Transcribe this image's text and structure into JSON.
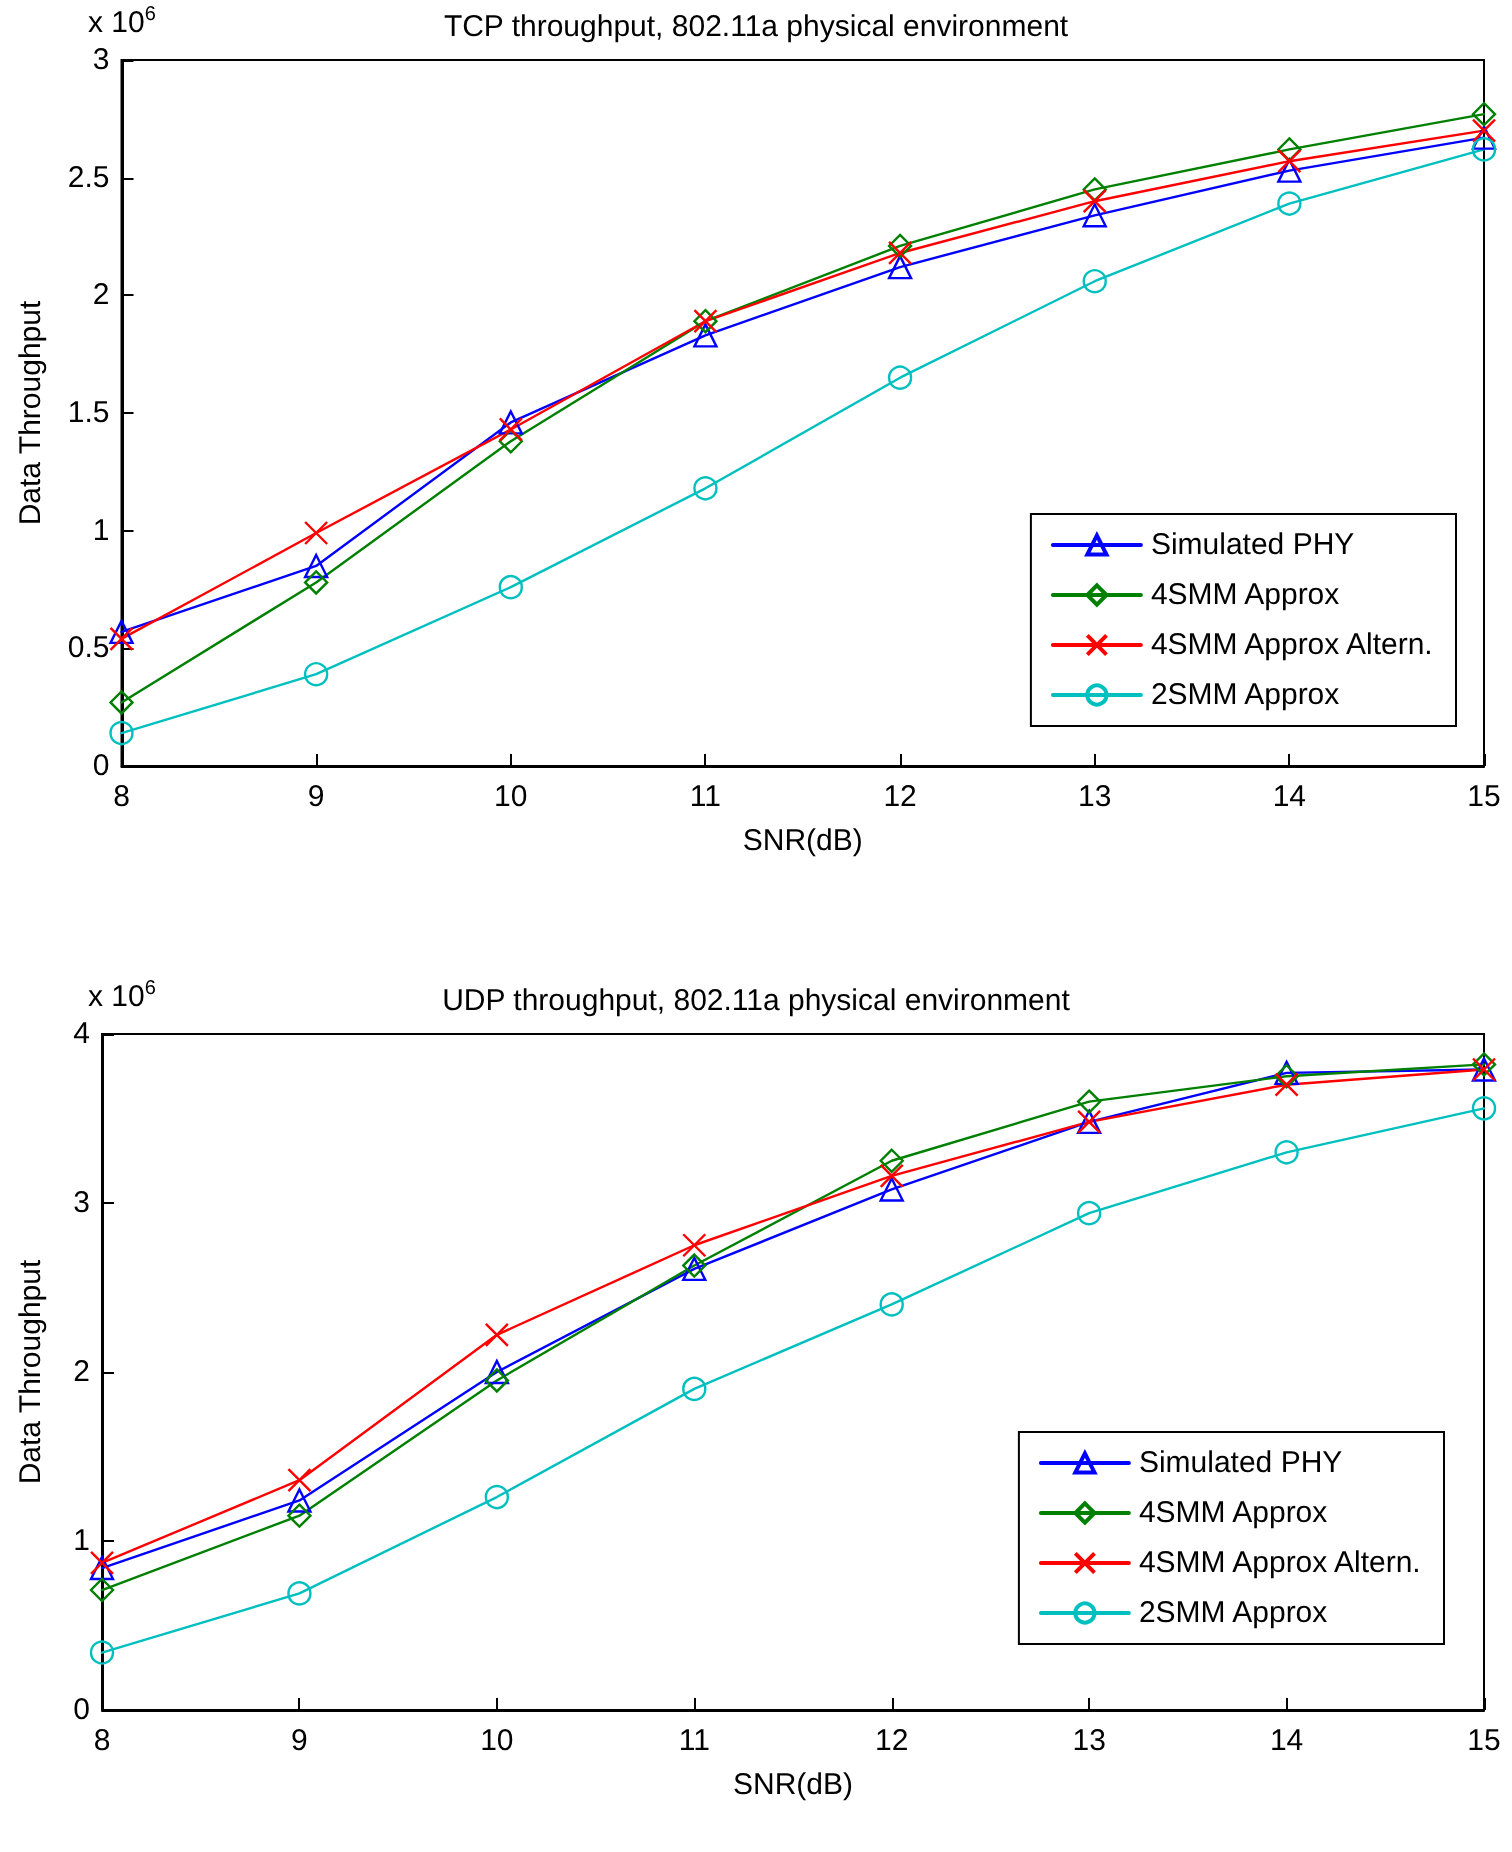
{
  "chart_data": [
    {
      "type": "line",
      "title": "TCP throughput, 802.11a physical environment",
      "xlabel": "SNR(dB)",
      "ylabel": "Data Throughput",
      "annotations": [
        "x 10$^{6}$"
      ],
      "x": [
        8,
        9,
        10,
        11,
        12,
        13,
        14,
        15
      ],
      "xlim": [
        8,
        15
      ],
      "xticks": [
        8,
        9,
        10,
        11,
        12,
        13,
        14,
        15
      ],
      "ylim": [
        0,
        3
      ],
      "yticks": [
        0,
        0.5,
        1,
        1.5,
        2,
        2.5,
        3
      ],
      "grid": false,
      "legend": "bottom right",
      "line_style": "solid",
      "series": [
        {
          "name": "Simulated PHY",
          "color": "#0000ff",
          "marker": "triangle",
          "values": [
            0.57,
            0.85,
            1.46,
            1.83,
            2.12,
            2.34,
            2.53,
            2.67
          ]
        },
        {
          "name": "4SMM Approx",
          "color": "#008000",
          "marker": "diamond",
          "values": [
            0.27,
            0.78,
            1.38,
            1.89,
            2.21,
            2.45,
            2.62,
            2.77
          ]
        },
        {
          "name": "4SMM Approx Altern.",
          "color": "#ff0000",
          "marker": "cross",
          "values": [
            0.54,
            0.99,
            1.43,
            1.89,
            2.18,
            2.4,
            2.57,
            2.7
          ]
        },
        {
          "name": "2SMM Approx",
          "color": "#00bfbf",
          "marker": "circle",
          "values": [
            0.14,
            0.39,
            0.76,
            1.18,
            1.65,
            2.06,
            2.39,
            2.62
          ]
        }
      ]
    },
    {
      "type": "line",
      "title": "UDP throughput, 802.11a physical environment",
      "xlabel": "SNR(dB)",
      "ylabel": "Data Throughput",
      "annotations": [
        "x 10$^{6}$"
      ],
      "x": [
        8,
        9,
        10,
        11,
        12,
        13,
        14,
        15
      ],
      "xlim": [
        8,
        15
      ],
      "xticks": [
        8,
        9,
        10,
        11,
        12,
        13,
        14,
        15
      ],
      "ylim": [
        0,
        4
      ],
      "yticks": [
        0,
        1,
        2,
        3,
        4
      ],
      "grid": false,
      "legend": "bottom right",
      "line_style": "solid",
      "series": [
        {
          "name": "Simulated PHY",
          "color": "#0000ff",
          "marker": "triangle",
          "values": [
            0.84,
            1.24,
            2.0,
            2.61,
            3.08,
            3.48,
            3.77,
            3.79
          ]
        },
        {
          "name": "4SMM Approx",
          "color": "#008000",
          "marker": "diamond",
          "values": [
            0.71,
            1.15,
            1.95,
            2.63,
            3.25,
            3.6,
            3.75,
            3.82
          ]
        },
        {
          "name": "4SMM Approx Altern.",
          "color": "#ff0000",
          "marker": "cross",
          "values": [
            0.87,
            1.36,
            2.22,
            2.75,
            3.16,
            3.48,
            3.7,
            3.79
          ]
        },
        {
          "name": "2SMM Approx",
          "color": "#00bfbf",
          "marker": "circle",
          "values": [
            0.34,
            0.69,
            1.26,
            1.9,
            2.4,
            2.94,
            3.3,
            3.56
          ]
        }
      ]
    }
  ]
}
